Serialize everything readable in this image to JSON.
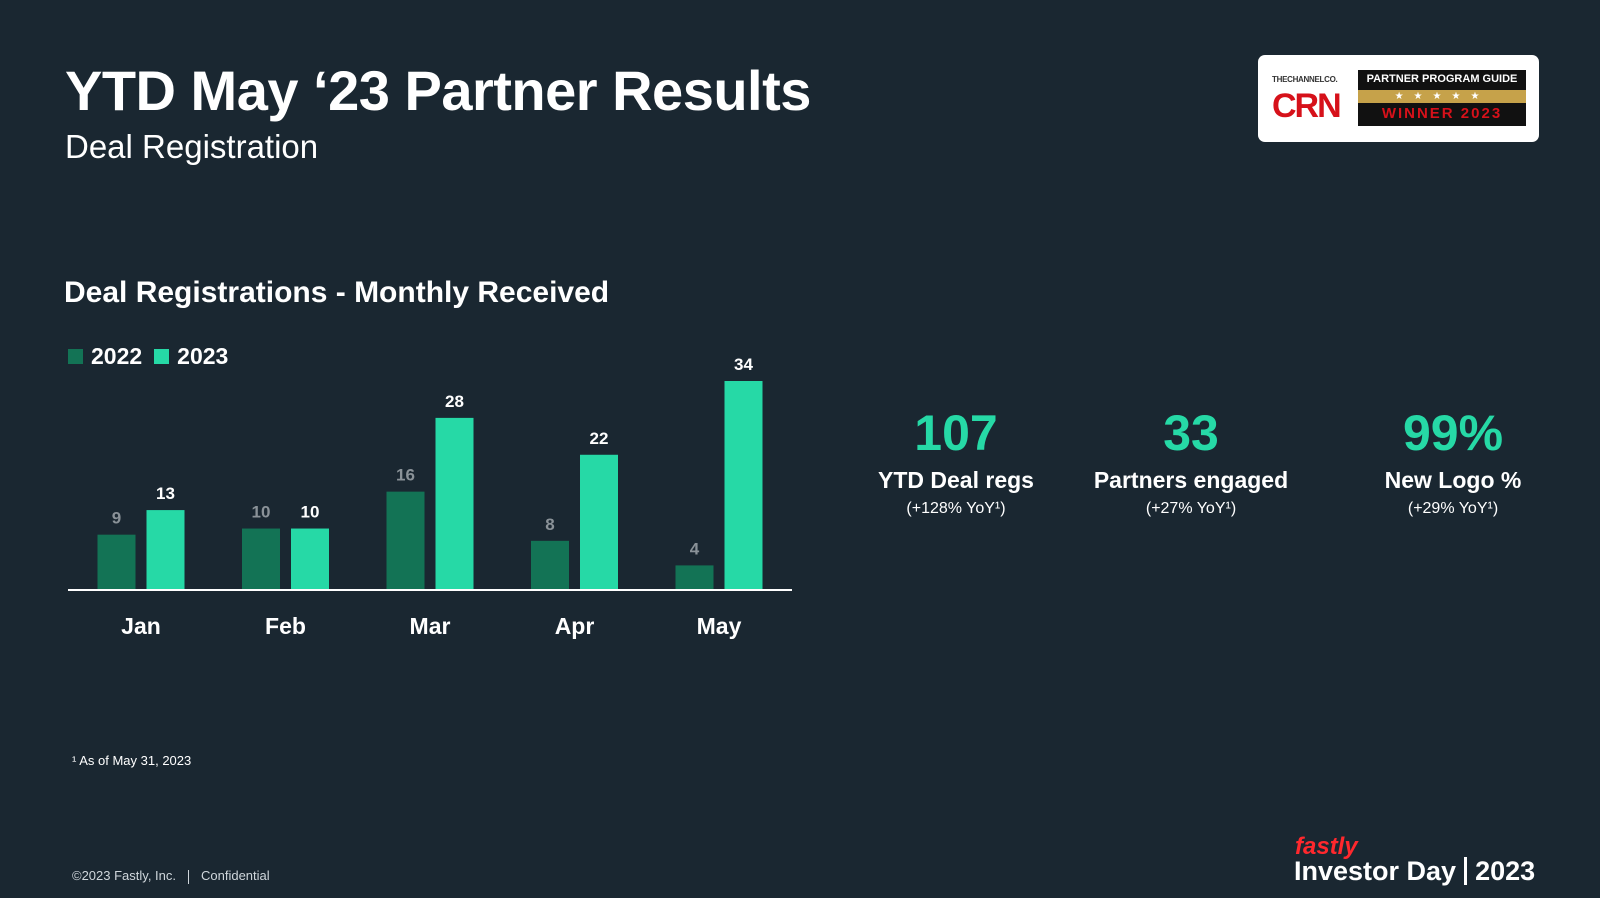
{
  "header": {
    "title": "YTD May ‘23 Partner Results",
    "subtitle": "Deal Registration"
  },
  "badge": {
    "channel": "THECHANNELCO.",
    "crn": "CRN",
    "program": "PARTNER PROGRAM GUIDE",
    "stars": "★★★★★",
    "winner": "WINNER 2023"
  },
  "chart_data": {
    "type": "bar",
    "title": "Deal Registrations - Monthly Received",
    "categories": [
      "Jan",
      "Feb",
      "Mar",
      "Apr",
      "May"
    ],
    "series": [
      {
        "name": "2022",
        "values": [
          9,
          10,
          16,
          8,
          4
        ],
        "color": "#137355"
      },
      {
        "name": "2023",
        "values": [
          13,
          10,
          28,
          22,
          34
        ],
        "color": "#26d9a6"
      }
    ],
    "xlabel": "",
    "ylabel": "",
    "ylim": [
      0,
      34
    ],
    "grid": false,
    "legend_position": "top-left",
    "label_colors": {
      "2022": "#8a9298",
      "2023": "#ffffff"
    }
  },
  "stats": [
    {
      "value": "107",
      "label": "YTD Deal regs",
      "sub": "(+128% YoY¹)"
    },
    {
      "value": "33",
      "label": "Partners engaged",
      "sub": "(+27% YoY¹)"
    },
    {
      "value": "99%",
      "label": "New Logo %",
      "sub": "(+29% YoY¹)"
    }
  ],
  "footnote": "¹ As of May 31, 2023",
  "footer": {
    "copyright": "©2023 Fastly, Inc.",
    "confidential": "Confidential"
  },
  "brand": {
    "logo": "fastly",
    "event": "Investor Day",
    "year": "2023"
  },
  "colors": {
    "background": "#1a2731",
    "accent": "#26d9a6",
    "dark_green": "#137355",
    "brand_red": "#ff282d"
  }
}
